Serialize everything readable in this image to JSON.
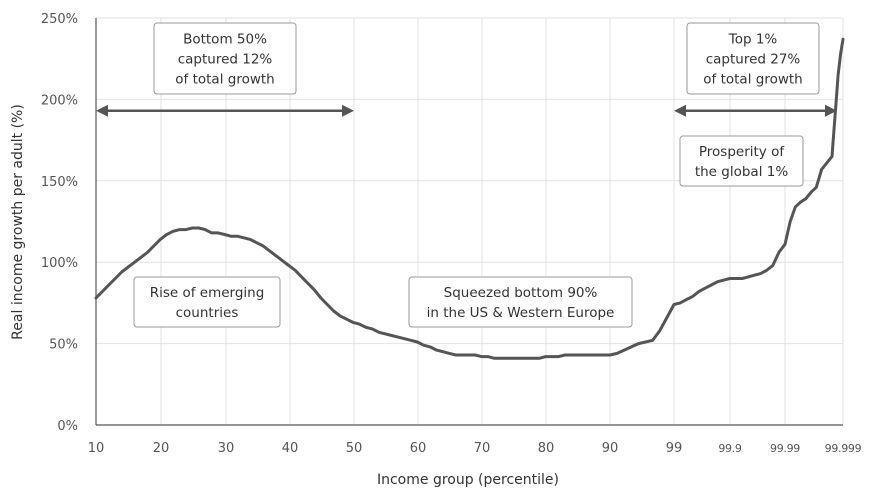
{
  "chart_data": {
    "type": "line",
    "xlabel": "Income group (percentile)",
    "ylabel": "Real income growth per adult (%)",
    "ylim": [
      0,
      250
    ],
    "y_ticks": [
      "0%",
      "50%",
      "100%",
      "150%",
      "200%",
      "250%"
    ],
    "y_tick_values": [
      0,
      50,
      100,
      150,
      200,
      250
    ],
    "x_ticks": [
      "10",
      "20",
      "30",
      "40",
      "50",
      "60",
      "70",
      "80",
      "90",
      "99",
      "99.9",
      "99.99",
      "99.999"
    ],
    "grid": true,
    "colors": {
      "line": "#555555",
      "grid": "#e2e2e2",
      "axis": "#555555"
    },
    "series": [
      {
        "x": [
          10,
          11,
          12,
          13,
          14,
          15,
          16,
          17,
          18,
          19,
          20,
          21,
          22,
          23,
          24,
          25,
          26,
          27,
          28,
          29,
          30,
          31,
          32,
          33,
          34,
          35,
          36,
          37,
          38,
          39,
          40,
          41,
          42,
          43,
          44,
          45,
          46,
          47,
          48,
          49,
          50,
          51,
          52,
          53,
          54,
          55,
          56,
          57,
          58,
          59,
          60,
          61,
          62,
          63,
          64,
          65,
          66,
          67,
          68,
          69,
          70,
          71,
          72,
          73,
          74,
          75,
          76,
          77,
          78,
          79,
          80,
          81,
          82,
          83,
          84,
          85,
          86,
          87,
          88,
          89,
          90,
          91,
          92,
          93,
          94,
          95,
          96,
          97,
          98,
          99
        ],
        "values": [
          78,
          82,
          86,
          90,
          94,
          97,
          100,
          103,
          106,
          110,
          114,
          117,
          119,
          120,
          120,
          121,
          121,
          120,
          118,
          118,
          117,
          116,
          116,
          115,
          114,
          112,
          110,
          107,
          104,
          101,
          98,
          95,
          91,
          87,
          83,
          78,
          74,
          70,
          67,
          65,
          63,
          62,
          60,
          59,
          57,
          56,
          55,
          54,
          53,
          52,
          51,
          49,
          48,
          46,
          45,
          44,
          43,
          43,
          43,
          43,
          42,
          42,
          41,
          41,
          41,
          41,
          41,
          41,
          41,
          41,
          42,
          42,
          42,
          43,
          43,
          43,
          43,
          43,
          43,
          43,
          43,
          44,
          46,
          48,
          50,
          51,
          52,
          58,
          66,
          74
        ]
      },
      {
        "x": [
          99.0,
          99.1,
          99.2,
          99.3,
          99.4,
          99.5,
          99.6,
          99.7,
          99.8,
          99.9
        ],
        "values": [
          74,
          75,
          77,
          79,
          82,
          84,
          86,
          88,
          89,
          90
        ]
      },
      {
        "x": [
          99.9,
          99.91,
          99.92,
          99.93,
          99.94,
          99.95,
          99.96,
          99.97,
          99.98,
          99.99
        ],
        "values": [
          90,
          90,
          90,
          91,
          92,
          93,
          95,
          98,
          106,
          111
        ]
      },
      {
        "x": [
          99.99,
          99.991,
          99.992,
          99.993,
          99.994,
          99.995,
          99.996,
          99.997,
          99.998,
          99.999
        ],
        "values": [
          111,
          125,
          134,
          137,
          139,
          143,
          146,
          157,
          161,
          165
        ]
      },
      {
        "x": [
          99.999,
          99.9991,
          99.9993,
          99.9995,
          99.9997,
          99.9999
        ],
        "values": [
          165,
          175,
          195,
          215,
          228,
          237
        ]
      }
    ],
    "annotations": [
      {
        "id": "bottom50",
        "lines": [
          "Bottom 50%",
          "captured 12%",
          "of total growth"
        ],
        "arrow": {
          "from": "10",
          "to": "50",
          "y": 193
        }
      },
      {
        "id": "top1",
        "lines": [
          "Top 1%",
          "captured 27%",
          "of total growth"
        ],
        "arrow": {
          "from": "99",
          "to": "99.999",
          "y": 193
        }
      },
      {
        "id": "emerging",
        "lines": [
          "Rise of emerging",
          "countries"
        ]
      },
      {
        "id": "squeezed",
        "lines": [
          "Squeezed bottom 90%",
          "in the US & Western Europe"
        ]
      },
      {
        "id": "prosperity",
        "lines": [
          "Prosperity of",
          "the global 1%"
        ]
      }
    ]
  }
}
